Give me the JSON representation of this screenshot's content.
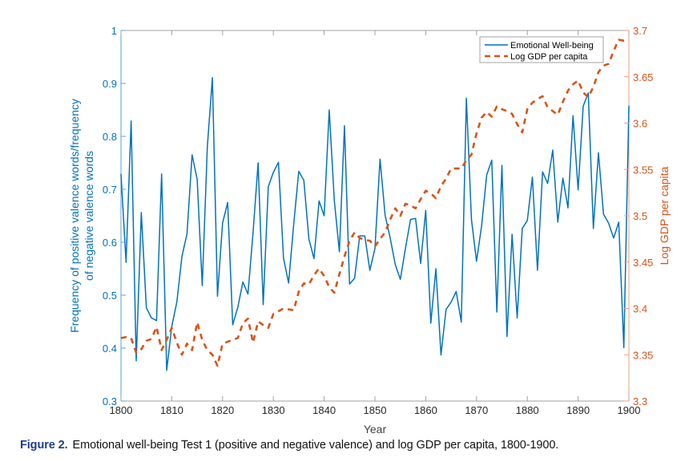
{
  "caption": {
    "label": "Figure 2.",
    "text": "Emotional well-being Test 1 (positive and negative valence) and log GDP per capita, 1800-1900."
  },
  "chart_data": {
    "type": "line",
    "title": "",
    "xlabel": "Year",
    "ylabel_left": "Frequency of positive valence words/frequency of negative valence words",
    "ylabel_left_lines": [
      "Frequency of positive valence words/frequency",
      "of negative valence words"
    ],
    "ylabel_right": "Log GDP per capita",
    "xlim": [
      1800,
      1900
    ],
    "ylim_left": [
      0.3,
      1.0
    ],
    "ylim_right": [
      3.3,
      3.7
    ],
    "x_ticks": [
      "1800",
      "1810",
      "1820",
      "1830",
      "1840",
      "1850",
      "1860",
      "1870",
      "1880",
      "1890",
      "1900"
    ],
    "y_ticks_left": [
      "0.3",
      "0.4",
      "0.5",
      "0.6",
      "0.7",
      "0.8",
      "0.9",
      "1"
    ],
    "y_ticks_right": [
      "3.3",
      "3.35",
      "3.4",
      "3.45",
      "3.5",
      "3.55",
      "3.6",
      "3.65",
      "3.7"
    ],
    "grid": false,
    "legend_position": "top-right",
    "colors": {
      "left_axis": "#0072bd",
      "right_axis": "#d95319",
      "box": "#a0a0a0"
    },
    "x": [
      1800,
      1801,
      1802,
      1803,
      1804,
      1805,
      1806,
      1807,
      1808,
      1809,
      1810,
      1811,
      1812,
      1813,
      1814,
      1815,
      1816,
      1817,
      1818,
      1819,
      1820,
      1821,
      1822,
      1823,
      1824,
      1825,
      1826,
      1827,
      1828,
      1829,
      1830,
      1831,
      1832,
      1833,
      1834,
      1835,
      1836,
      1837,
      1838,
      1839,
      1840,
      1841,
      1842,
      1843,
      1844,
      1845,
      1846,
      1847,
      1848,
      1849,
      1850,
      1851,
      1852,
      1853,
      1854,
      1855,
      1856,
      1857,
      1858,
      1859,
      1860,
      1861,
      1862,
      1863,
      1864,
      1865,
      1866,
      1867,
      1868,
      1869,
      1870,
      1871,
      1872,
      1873,
      1874,
      1875,
      1876,
      1877,
      1878,
      1879,
      1880,
      1881,
      1882,
      1883,
      1884,
      1885,
      1886,
      1887,
      1888,
      1889,
      1890,
      1891,
      1892,
      1893,
      1894,
      1895,
      1896,
      1897,
      1898,
      1899,
      1900
    ],
    "series": [
      {
        "name": "Emotional Well-being",
        "axis": "left",
        "style": "solid",
        "color": "#0072bd",
        "values": [
          0.729,
          0.562,
          0.829,
          0.376,
          0.656,
          0.476,
          0.457,
          0.452,
          0.729,
          0.358,
          0.441,
          0.487,
          0.573,
          0.616,
          0.765,
          0.719,
          0.518,
          0.78,
          0.911,
          0.498,
          0.636,
          0.675,
          0.444,
          0.477,
          0.525,
          0.502,
          0.618,
          0.75,
          0.482,
          0.705,
          0.732,
          0.751,
          0.57,
          0.523,
          0.633,
          0.734,
          0.717,
          0.606,
          0.569,
          0.678,
          0.65,
          0.85,
          0.679,
          0.582,
          0.82,
          0.521,
          0.532,
          0.612,
          0.612,
          0.547,
          0.588,
          0.757,
          0.651,
          0.608,
          0.558,
          0.53,
          0.588,
          0.643,
          0.645,
          0.56,
          0.66,
          0.447,
          0.55,
          0.387,
          0.473,
          0.487,
          0.507,
          0.449,
          0.872,
          0.643,
          0.564,
          0.631,
          0.727,
          0.755,
          0.468,
          0.745,
          0.422,
          0.615,
          0.457,
          0.626,
          0.641,
          0.723,
          0.547,
          0.733,
          0.711,
          0.774,
          0.638,
          0.721,
          0.665,
          0.839,
          0.699,
          0.857,
          0.882,
          0.626,
          0.769,
          0.653,
          0.636,
          0.608,
          0.638,
          0.401,
          0.858
        ]
      },
      {
        "name": "Log GDP per capita",
        "axis": "right",
        "style": "dashed",
        "color": "#d95319",
        "values": [
          3.368,
          3.369,
          3.368,
          3.352,
          3.356,
          3.365,
          3.367,
          3.38,
          3.355,
          3.366,
          3.379,
          3.363,
          3.35,
          3.362,
          3.355,
          3.385,
          3.366,
          3.355,
          3.35,
          3.338,
          3.362,
          3.364,
          3.366,
          3.368,
          3.384,
          3.389,
          3.363,
          3.386,
          3.382,
          3.379,
          3.394,
          3.397,
          3.4,
          3.399,
          3.398,
          3.418,
          3.427,
          3.426,
          3.436,
          3.443,
          3.435,
          3.423,
          3.417,
          3.437,
          3.456,
          3.473,
          3.482,
          3.476,
          3.474,
          3.473,
          3.467,
          3.475,
          3.482,
          3.496,
          3.508,
          3.5,
          3.513,
          3.511,
          3.508,
          3.518,
          3.527,
          3.524,
          3.519,
          3.532,
          3.54,
          3.551,
          3.551,
          3.551,
          3.56,
          3.566,
          3.589,
          3.606,
          3.612,
          3.607,
          3.618,
          3.615,
          3.613,
          3.61,
          3.599,
          3.59,
          3.615,
          3.622,
          3.626,
          3.629,
          3.617,
          3.613,
          3.609,
          3.623,
          3.635,
          3.642,
          3.646,
          3.633,
          3.628,
          3.639,
          3.655,
          3.662,
          3.664,
          3.678,
          3.69,
          3.689,
          3.69
        ]
      }
    ]
  }
}
